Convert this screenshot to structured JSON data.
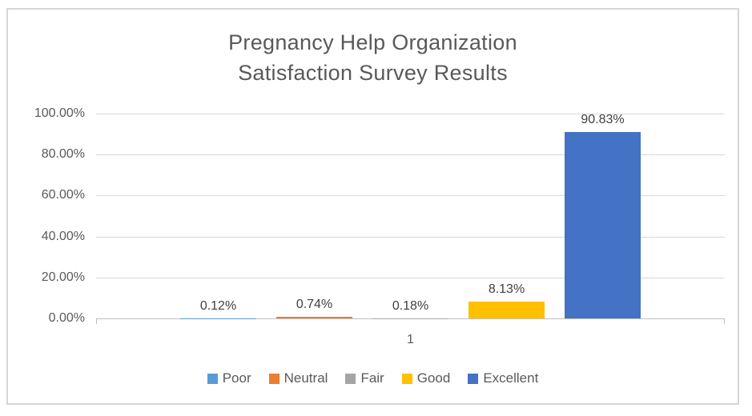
{
  "chart_data": {
    "type": "bar",
    "title": "Pregnancy Help Organization Satisfaction Survey Results",
    "title_lines": [
      "Pregnancy Help Organization",
      "Satisfaction Survey Results"
    ],
    "categories": [
      "1"
    ],
    "series": [
      {
        "name": "Poor",
        "values": [
          0.12
        ],
        "label": "0.12%",
        "color": "#5B9BD5"
      },
      {
        "name": "Neutral",
        "values": [
          0.74
        ],
        "label": "0.74%",
        "color": "#ED7D31"
      },
      {
        "name": "Fair",
        "values": [
          0.18
        ],
        "label": "0.18%",
        "color": "#A5A5A5"
      },
      {
        "name": "Good",
        "values": [
          8.13
        ],
        "label": "8.13%",
        "color": "#FFC000"
      },
      {
        "name": "Excellent",
        "values": [
          90.83
        ],
        "label": "90.83%",
        "color": "#4472C4"
      }
    ],
    "y_axis": {
      "ticks": [
        "100.00%",
        "80.00%",
        "60.00%",
        "40.00%",
        "20.00%",
        "0.00%"
      ],
      "min": 0,
      "max": 100,
      "step": 20
    },
    "x_axis": {
      "label": "1"
    },
    "legend": {
      "position": "bottom",
      "entries": [
        "Poor",
        "Neutral",
        "Fair",
        "Good",
        "Excellent"
      ]
    },
    "grid": true
  },
  "colors": {
    "title_text": "#595959",
    "axis_text": "#595959",
    "data_label_text": "#404040",
    "gridline": "#D9D9D9",
    "axis_line": "#BFBFBF",
    "chart_border": "#D6D6D6",
    "background": "#FFFFFF"
  }
}
